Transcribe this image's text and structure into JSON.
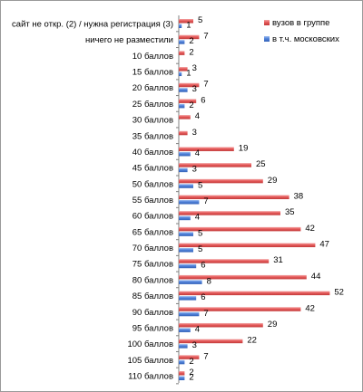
{
  "chart_data": {
    "type": "bar",
    "orientation": "horizontal",
    "categories": [
      "сайт не откр. (2) / нужна регистрация (3)",
      "ничего не разместили",
      "10 баллов",
      "15 баллов",
      "20 баллов",
      "25 баллов",
      "30 баллов",
      "35 баллов",
      "40 баллов",
      "45 баллов",
      "50 баллов",
      "55 баллов",
      "60 баллов",
      "65 баллов",
      "70 баллов",
      "75 баллов",
      "80 баллов",
      "85 баллов",
      "90 баллов",
      "95 баллов",
      "100 баллов",
      "105 баллов",
      "110 баллов"
    ],
    "series": [
      {
        "name": "вузов в группе",
        "color": "#e55a5a",
        "values": [
          5,
          7,
          2,
          3,
          7,
          6,
          4,
          3,
          19,
          25,
          29,
          38,
          35,
          42,
          47,
          31,
          44,
          52,
          42,
          29,
          22,
          7,
          2
        ]
      },
      {
        "name": "в т.ч. московских",
        "color": "#4f81d9",
        "values": [
          1,
          2,
          null,
          1,
          3,
          2,
          null,
          null,
          4,
          3,
          5,
          7,
          4,
          5,
          5,
          6,
          8,
          6,
          7,
          4,
          3,
          2,
          2
        ]
      }
    ],
    "xlim": [
      0,
      55
    ],
    "grid": false,
    "legend_position": "top-right"
  }
}
